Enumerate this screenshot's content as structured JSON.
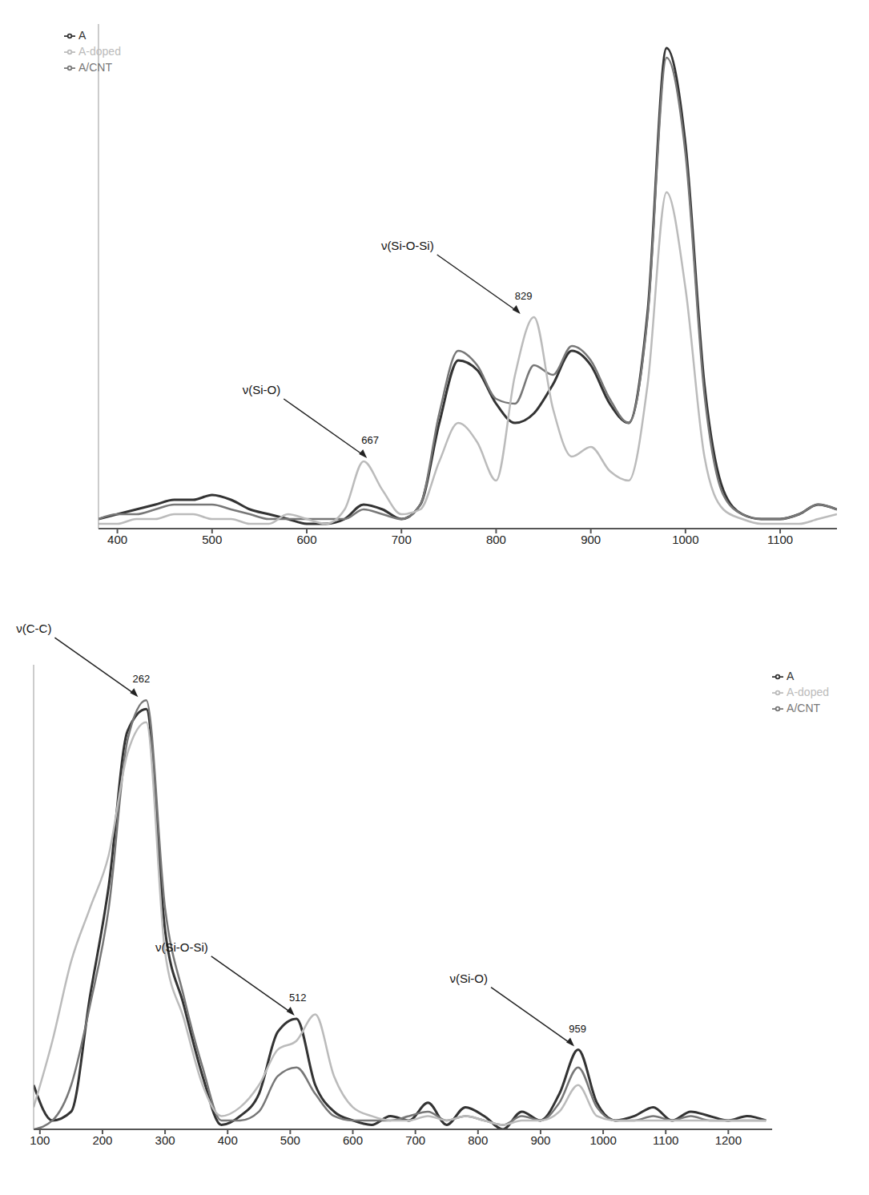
{
  "chart_data": [
    {
      "type": "line",
      "x": [
        380,
        400,
        420,
        440,
        460,
        480,
        500,
        520,
        540,
        560,
        580,
        600,
        620,
        640,
        660,
        680,
        700,
        720,
        740,
        760,
        780,
        800,
        820,
        840,
        860,
        880,
        900,
        920,
        940,
        960,
        980,
        1000,
        1020,
        1040,
        1060,
        1080,
        1100,
        1120,
        1140,
        1160
      ],
      "series": [
        {
          "name": "A",
          "color": "#333333",
          "values": [
            2,
            3,
            4,
            5,
            6,
            6,
            7,
            6,
            4,
            3,
            2,
            1,
            1,
            2,
            5,
            4,
            2,
            5,
            22,
            35,
            33,
            26,
            22,
            24,
            30,
            37,
            34,
            26,
            22,
            45,
            100,
            80,
            30,
            8,
            3,
            2,
            2,
            3,
            5,
            4
          ]
        },
        {
          "name": "A/CNT",
          "color": "#777777",
          "values": [
            2,
            3,
            3,
            4,
            5,
            5,
            5,
            4,
            3,
            2,
            2,
            2,
            2,
            2,
            4,
            3,
            2,
            5,
            24,
            37,
            34,
            27,
            26,
            34,
            32,
            38,
            35,
            27,
            22,
            44,
            98,
            78,
            28,
            7,
            3,
            2,
            2,
            3,
            5,
            4
          ]
        },
        {
          "name": "A-doped",
          "color": "#bbbbbb",
          "values": [
            1,
            1,
            2,
            2,
            3,
            3,
            2,
            2,
            1,
            1,
            3,
            2,
            1,
            4,
            14,
            8,
            3,
            4,
            14,
            22,
            18,
            10,
            32,
            44,
            25,
            15,
            17,
            12,
            10,
            30,
            70,
            50,
            15,
            4,
            2,
            1,
            1,
            1,
            2,
            3
          ]
        }
      ],
      "xlim": [
        380,
        1160
      ],
      "xticks": [
        400,
        500,
        600,
        700,
        800,
        900,
        1000,
        1100
      ],
      "ylim": [
        0,
        105
      ],
      "tick_labels": "x",
      "legend": "upper left",
      "annotations": [
        {
          "text": "ν(Si-O)",
          "label": "667",
          "x": 667,
          "y": 14
        },
        {
          "text": "ν(Si-O-Si)",
          "label": "829",
          "x": 829,
          "y": 44
        }
      ]
    },
    {
      "type": "line",
      "x": [
        90,
        120,
        150,
        180,
        210,
        240,
        270,
        300,
        330,
        360,
        390,
        420,
        450,
        480,
        510,
        540,
        570,
        600,
        630,
        660,
        690,
        720,
        750,
        780,
        810,
        840,
        870,
        900,
        930,
        960,
        990,
        1020,
        1050,
        1080,
        1110,
        1140,
        1170,
        1200,
        1230,
        1260
      ],
      "series": [
        {
          "name": "A",
          "color": "#333333",
          "values": [
            10,
            2,
            4,
            30,
            55,
            90,
            95,
            45,
            28,
            12,
            1,
            3,
            8,
            22,
            25,
            10,
            4,
            2,
            1,
            3,
            2,
            6,
            1,
            5,
            3,
            0,
            4,
            2,
            8,
            18,
            6,
            2,
            3,
            5,
            2,
            4,
            3,
            2,
            3,
            2
          ]
        },
        {
          "name": "A/CNT",
          "color": "#777777",
          "values": [
            0,
            2,
            10,
            28,
            50,
            88,
            97,
            50,
            30,
            14,
            2,
            2,
            4,
            12,
            14,
            8,
            3,
            2,
            2,
            2,
            3,
            4,
            2,
            3,
            2,
            1,
            3,
            2,
            6,
            14,
            5,
            2,
            2,
            3,
            2,
            3,
            2,
            2,
            2,
            2
          ]
        },
        {
          "name": "A-doped",
          "color": "#bbbbbb",
          "values": [
            5,
            20,
            38,
            50,
            62,
            85,
            92,
            40,
            25,
            10,
            3,
            5,
            10,
            18,
            20,
            26,
            12,
            5,
            3,
            2,
            2,
            3,
            2,
            3,
            2,
            1,
            2,
            2,
            4,
            10,
            3,
            2,
            2,
            2,
            2,
            2,
            2,
            2,
            2,
            2
          ]
        }
      ],
      "xlim": [
        90,
        1270
      ],
      "xticks": [
        100,
        200,
        300,
        400,
        500,
        600,
        700,
        800,
        900,
        1000,
        1100,
        1200
      ],
      "ylim": [
        0,
        105
      ],
      "tick_labels": "x",
      "legend": "upper right",
      "annotations": [
        {
          "text": "ν(C-C)",
          "label": "262",
          "x": 262,
          "y": 97
        },
        {
          "text": "ν(Si-O-Si)",
          "label": "512",
          "x": 512,
          "y": 25
        },
        {
          "text": "ν(Si-O)",
          "label": "959",
          "x": 959,
          "y": 18
        }
      ]
    }
  ]
}
